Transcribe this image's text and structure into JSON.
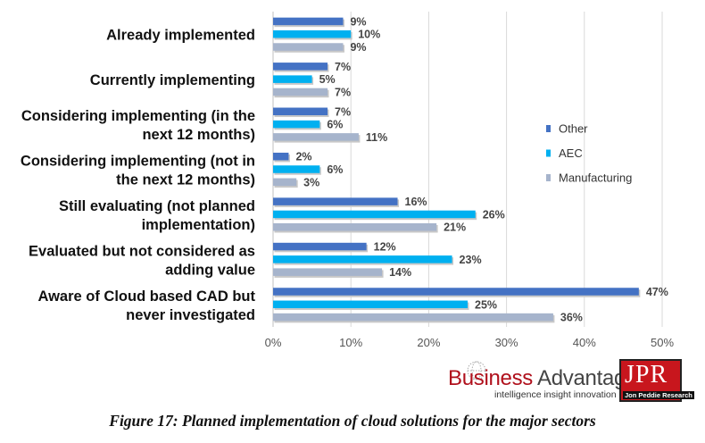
{
  "chart_data": {
    "type": "bar",
    "orientation": "horizontal",
    "categories": [
      "Already implemented",
      "Currently implementing",
      "Considering implementing (in the next 12 months)",
      "Considering implementing (not in the next 12 months)",
      "Still evaluating (not planned implementation)",
      "Evaluated but not considered as adding value",
      "Aware of Cloud based CAD but never investigated"
    ],
    "category_lines": [
      [
        "Already implemented"
      ],
      [
        "Currently implementing"
      ],
      [
        "Considering implementing (in the",
        "next 12 months)"
      ],
      [
        "Considering implementing (not in",
        "the next 12 months)"
      ],
      [
        "Still evaluating (not planned",
        "implementation)"
      ],
      [
        "Evaluated but not considered as",
        "adding value"
      ],
      [
        "Aware of Cloud based CAD but",
        "never investigated"
      ]
    ],
    "series": [
      {
        "name": "Other",
        "color": "#4472C4",
        "values": [
          9,
          7,
          7,
          2,
          16,
          12,
          47
        ]
      },
      {
        "name": "AEC",
        "color": "#00B0F0",
        "values": [
          10,
          5,
          6,
          6,
          26,
          23,
          25
        ]
      },
      {
        "name": "Manufacturing",
        "color": "#A6B4CC",
        "values": [
          9,
          7,
          11,
          3,
          21,
          14,
          36
        ]
      }
    ],
    "value_suffix": "%",
    "xlim": [
      0,
      50
    ],
    "xticks": [
      0,
      10,
      20,
      30,
      40,
      50
    ],
    "xtick_labels": [
      "0%",
      "10%",
      "20%",
      "30%",
      "40%",
      "50%"
    ],
    "grid": true,
    "legend_position": "right",
    "title": "",
    "xlabel": "",
    "ylabel": ""
  },
  "logo": {
    "business": "Business",
    "advantage": "Advantage",
    "tagline": "intelligence  insight  innovation",
    "jpr": "JPR",
    "jpr_sub": "Jon Peddie Research"
  },
  "caption": "Figure 17: Planned implementation of cloud solutions for the major sectors"
}
